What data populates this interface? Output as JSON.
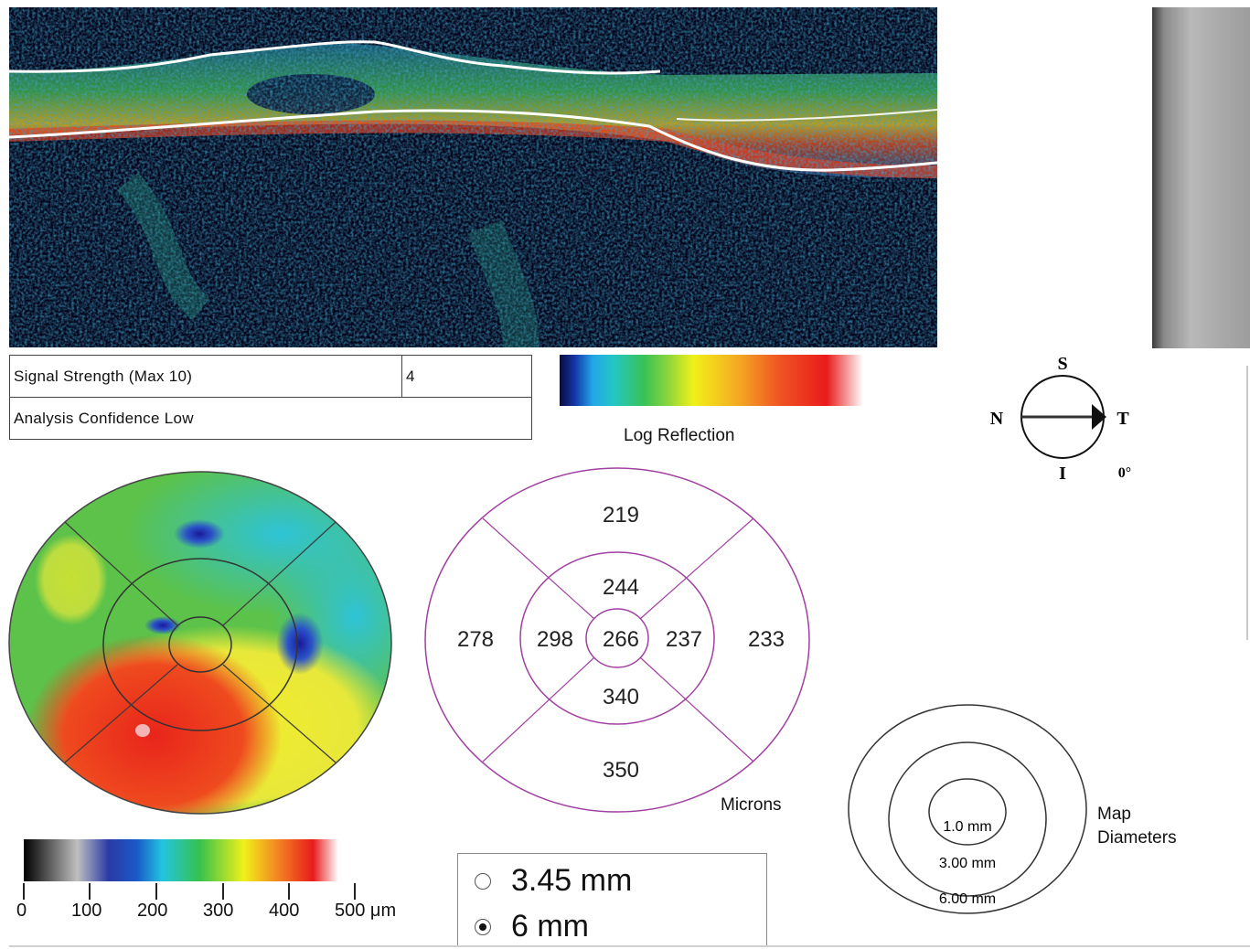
{
  "oct_scan": {
    "label": "OCT B-scan image"
  },
  "signal": {
    "label": "Signal Strength (Max 10)",
    "value": "4"
  },
  "confidence": {
    "label": "Analysis Confidence Low"
  },
  "log_reflection": {
    "label": "Log Reflection"
  },
  "compass": {
    "superior": "S",
    "inferior": "I",
    "nasal": "N",
    "temporal": "T",
    "angle": "0°"
  },
  "grid": {
    "outer_superior": "219",
    "inner_superior": "244",
    "outer_nasal": "278",
    "inner_nasal": "298",
    "center": "266",
    "inner_temporal": "237",
    "outer_temporal": "233",
    "inner_inferior": "340",
    "outer_inferior": "350",
    "units": "Microns"
  },
  "map_diameters": {
    "inner": "1.0 mm",
    "middle": "3.00 mm",
    "outer": "6.00 mm",
    "label_line1": "Map",
    "label_line2": "Diameters"
  },
  "thickness_scale": {
    "ticks": [
      "0",
      "100",
      "200",
      "300",
      "400",
      "500 μm"
    ]
  },
  "scan_options": {
    "option_a": {
      "label": "3.45 mm",
      "selected": false
    },
    "option_b": {
      "label": "6 mm",
      "selected": true
    }
  },
  "colors": {
    "grid_line": "#a040a0",
    "map_line": "#333333"
  }
}
